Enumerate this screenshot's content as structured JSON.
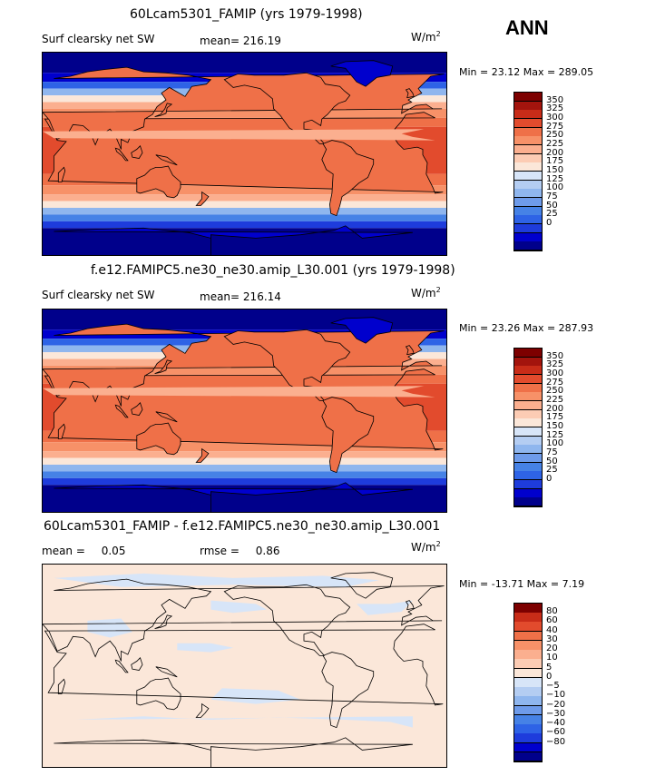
{
  "season": "ANN",
  "units_base": "W/m",
  "units_exp": "2",
  "colors": {
    "control": [
      "#00008b",
      "#0000cd",
      "#1e3cdc",
      "#2e63e6",
      "#4682e6",
      "#6e9bea",
      "#8fb6ee",
      "#b4cdf2",
      "#d7e5f8",
      "#fbe7d9",
      "#fcccb4",
      "#fbaf8f",
      "#f79168",
      "#ef7048",
      "#e24b2d",
      "#c82c18",
      "#a3140d",
      "#7d0000"
    ],
    "diff": [
      "#00008b",
      "#0000cd",
      "#1e3cdc",
      "#2e63e6",
      "#4682e6",
      "#6e9bea",
      "#8fb6ee",
      "#b4cdf2",
      "#d7e5f8",
      "#fbe7d9",
      "#fcccb4",
      "#fbaf8f",
      "#f79168",
      "#ef7048",
      "#e24b2d",
      "#c82c18",
      "#7d0000"
    ]
  },
  "panels": [
    {
      "title": "60Lcam5301_FAMIP (yrs 1979-1998)",
      "variable": "Surf clearsky net SW",
      "stat1_label": "mean=",
      "stat1_value": "216.19",
      "minmax": "Min =  23.12 Max = 289.05"
    },
    {
      "title": "f.e12.FAMIPC5.ne30_ne30.amip_L30.001 (yrs 1979-1998)",
      "variable": "Surf clearsky net SW",
      "stat1_label": "mean=",
      "stat1_value": "216.14",
      "minmax": "Min =  23.26 Max = 287.93"
    },
    {
      "title": "60Lcam5301_FAMIP - f.e12.FAMIPC5.ne30_ne30.amip_L30.001",
      "variable": "",
      "stat1_label": "mean =",
      "stat1_value": "0.05",
      "stat2_label": "rmse =",
      "stat2_value": "0.86",
      "minmax": "Min = -13.71 Max =   7.19"
    }
  ],
  "chart_data": [
    {
      "type": "heatmap",
      "title": "60Lcam5301_FAMIP (yrs 1979-1998)",
      "variable": "Surf clearsky net SW",
      "units": "W/m2",
      "mean": 216.19,
      "min": 23.12,
      "max": 289.05,
      "projection": "cylindrical equidistant, Pacific-centred",
      "colorbar_levels": [
        "350",
        "325",
        "300",
        "275",
        "250",
        "225",
        "200",
        "175",
        "150",
        "125",
        "100",
        "75",
        "50",
        "25",
        "0"
      ]
    },
    {
      "type": "heatmap",
      "title": "f.e12.FAMIPC5.ne30_ne30.amip_L30.001 (yrs 1979-1998)",
      "variable": "Surf clearsky net SW",
      "units": "W/m2",
      "mean": 216.14,
      "min": 23.26,
      "max": 287.93,
      "projection": "cylindrical equidistant, Pacific-centred",
      "colorbar_levels": [
        "350",
        "325",
        "300",
        "275",
        "250",
        "225",
        "200",
        "175",
        "150",
        "125",
        "100",
        "75",
        "50",
        "25",
        "0"
      ]
    },
    {
      "type": "heatmap",
      "title": "60Lcam5301_FAMIP - f.e12.FAMIPC5.ne30_ne30.amip_L30.001",
      "units": "W/m2",
      "mean": 0.05,
      "rmse": 0.86,
      "min": -13.71,
      "max": 7.19,
      "projection": "cylindrical equidistant, Pacific-centred",
      "colorbar_levels": [
        "80",
        "60",
        "40",
        "30",
        "20",
        "10",
        "5",
        "0",
        "−5",
        "−10",
        "−20",
        "−30",
        "−40",
        "−60",
        "−80"
      ]
    }
  ]
}
